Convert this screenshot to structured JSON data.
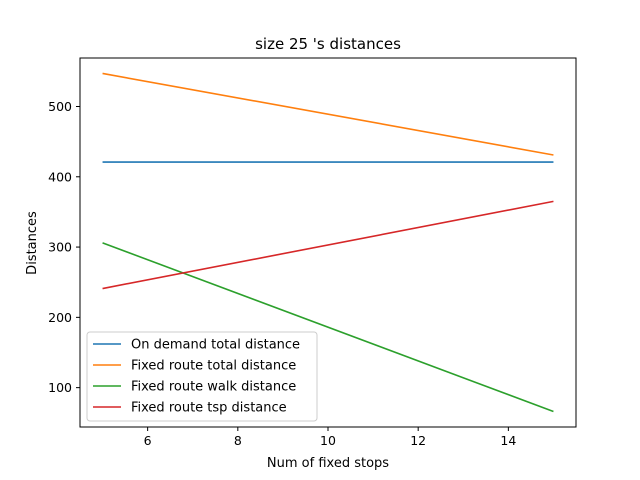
{
  "chart_data": {
    "type": "line",
    "title": "size 25 's distances",
    "xlabel": "Num of fixed stops",
    "ylabel": "Distances",
    "xlim": [
      4.5,
      15.5
    ],
    "ylim": [
      44,
      569
    ],
    "xticks": [
      6,
      8,
      10,
      12,
      14
    ],
    "yticks": [
      100,
      200,
      300,
      400,
      500
    ],
    "grid": false,
    "legend_position": "lower-left",
    "series": [
      {
        "name": "On demand total distance",
        "color": "#1f77b4",
        "x": [
          5,
          15
        ],
        "y": [
          421,
          421
        ]
      },
      {
        "name": "Fixed route total distance",
        "color": "#ff7f0e",
        "x": [
          5,
          15
        ],
        "y": [
          547,
          431
        ]
      },
      {
        "name": "Fixed route walk distance",
        "color": "#2ca02c",
        "x": [
          5,
          15
        ],
        "y": [
          306,
          66
        ]
      },
      {
        "name": "Fixed route tsp distance",
        "color": "#d62728",
        "x": [
          5,
          15
        ],
        "y": [
          241,
          365
        ]
      }
    ]
  }
}
